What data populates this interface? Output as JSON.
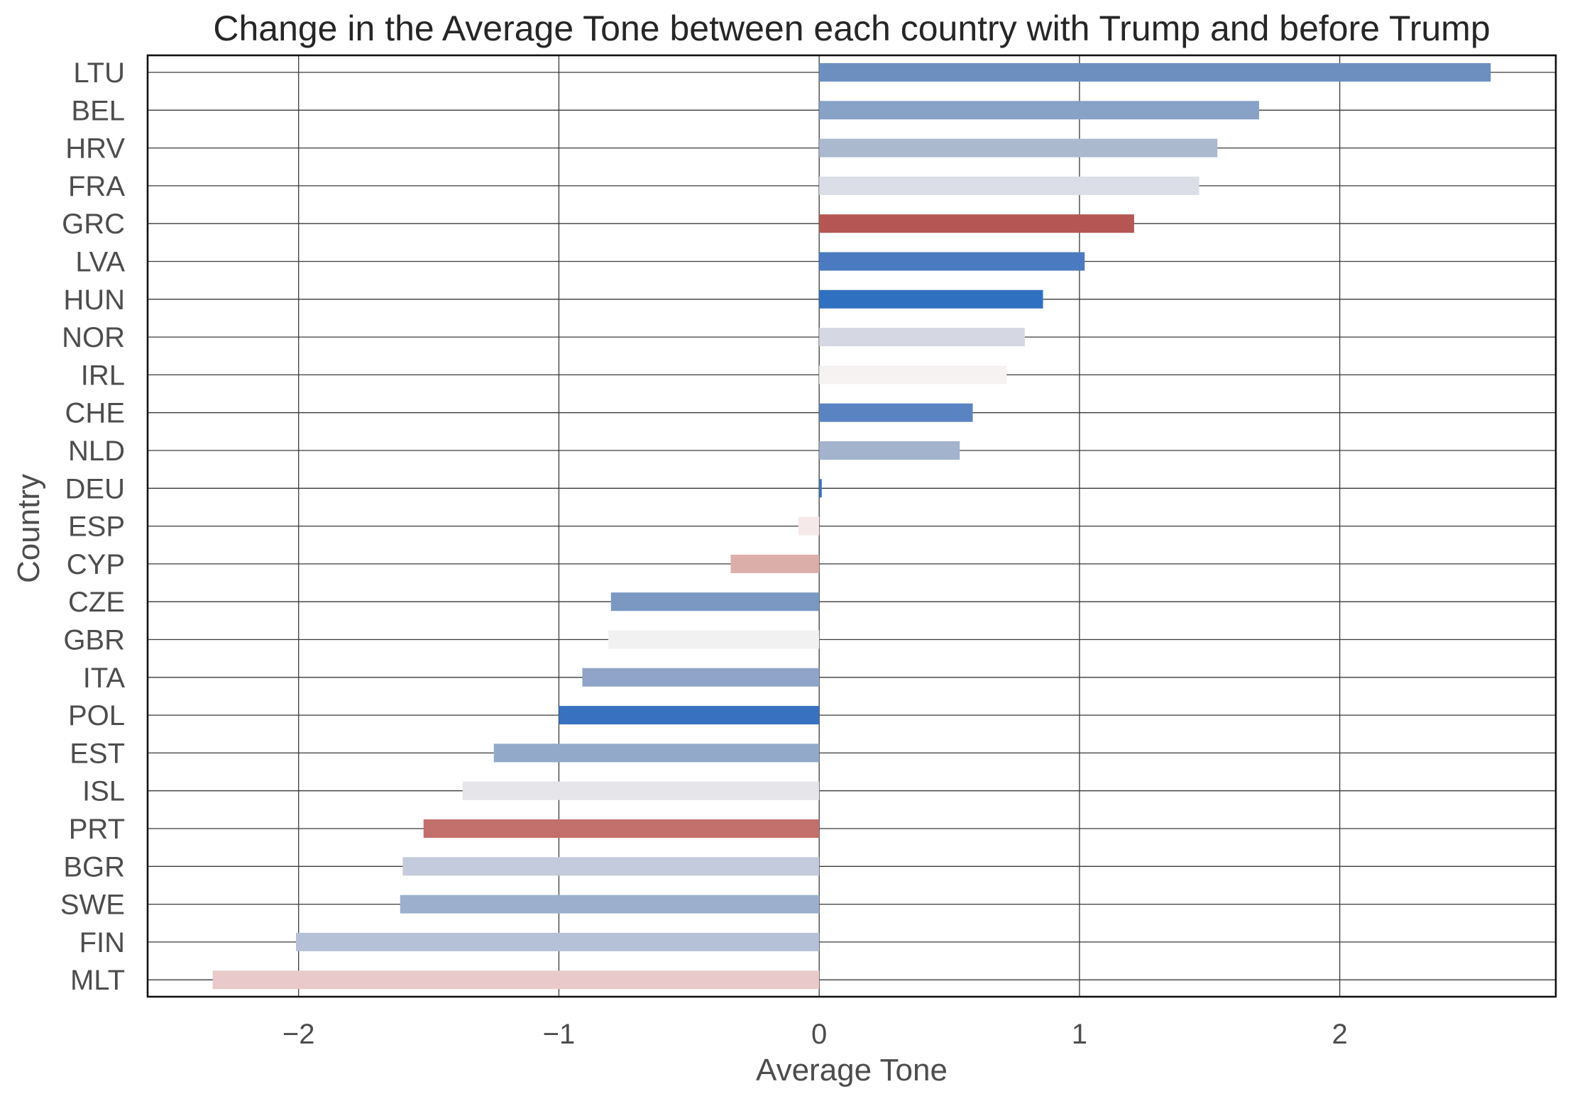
{
  "chart_data": {
    "type": "bar",
    "orientation": "horizontal",
    "title": "Change in the Average Tone between each country with Trump and before Trump",
    "xlabel": "Average Tone",
    "ylabel": "Country",
    "xlim": [
      -2.58,
      2.83
    ],
    "xticks": [
      -2,
      -1,
      0,
      1,
      2
    ],
    "xtick_labels": [
      "−2",
      "−1",
      "0",
      "1",
      "2"
    ],
    "grid": true,
    "categories": [
      "LTU",
      "BEL",
      "HRV",
      "FRA",
      "GRC",
      "LVA",
      "HUN",
      "NOR",
      "IRL",
      "CHE",
      "NLD",
      "DEU",
      "ESP",
      "CYP",
      "CZE",
      "GBR",
      "ITA",
      "POL",
      "EST",
      "ISL",
      "PRT",
      "BGR",
      "SWE",
      "FIN",
      "MLT"
    ],
    "values": [
      2.58,
      1.69,
      1.53,
      1.46,
      1.21,
      1.02,
      0.86,
      0.79,
      0.72,
      0.59,
      0.54,
      0.01,
      -0.08,
      -0.34,
      -0.8,
      -0.81,
      -0.91,
      -1.0,
      -1.25,
      -1.37,
      -1.52,
      -1.6,
      -1.61,
      -2.01,
      -2.33
    ],
    "colors": [
      "#6d8fc0",
      "#87a1c7",
      "#abb9cf",
      "#dcdee7",
      "#b55654",
      "#4b7ac0",
      "#3070c0",
      "#d5d8e2",
      "#f6f2f2",
      "#5a83c2",
      "#a3b3cd",
      "#3d73c0",
      "#f6e9e9",
      "#dcaeaa",
      "#7b98c3",
      "#f2f1f2",
      "#8fa4c8",
      "#3771c0",
      "#93a9ca",
      "#e5e5ea",
      "#c36f6c",
      "#c4cbdc",
      "#9cb0cd",
      "#b5c1d6",
      "#e9c9c9"
    ]
  }
}
